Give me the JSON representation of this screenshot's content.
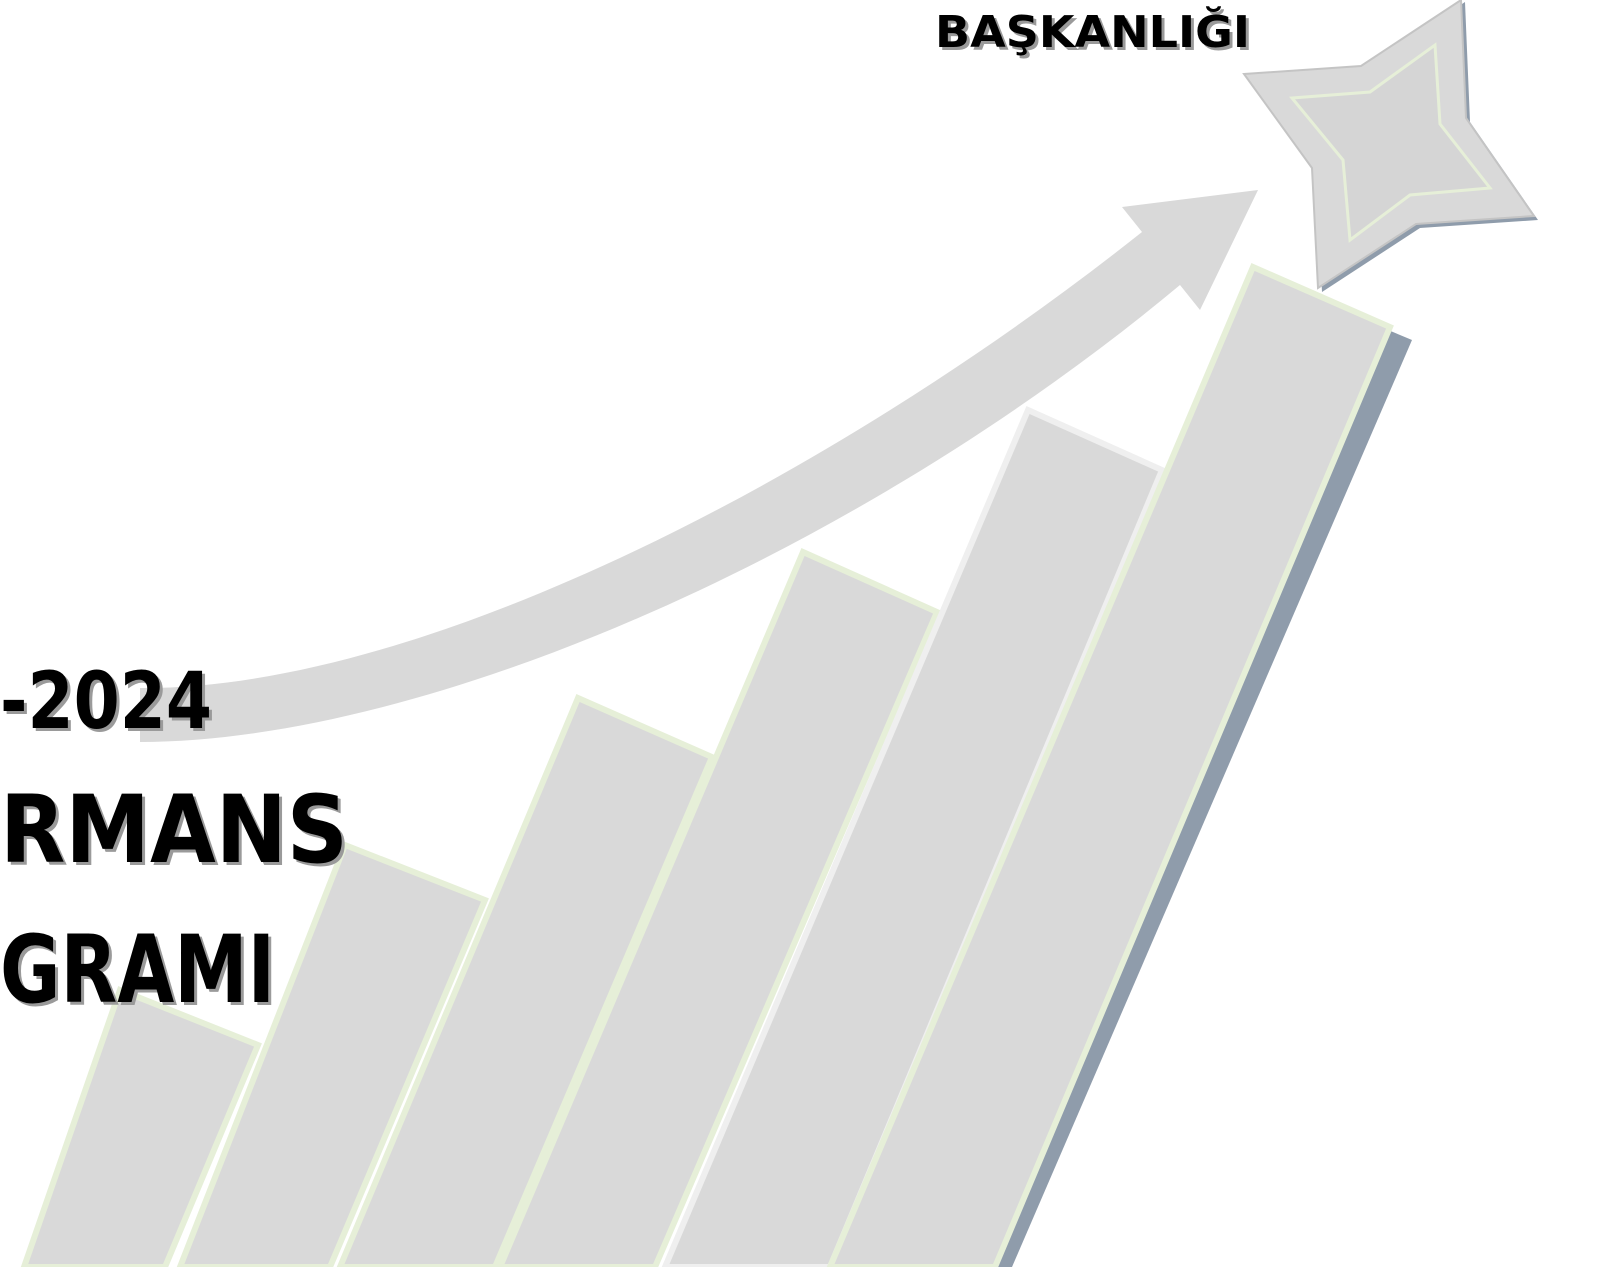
{
  "header": {
    "title": "BAŞKANLIĞI"
  },
  "cover": {
    "lines": [
      "-2024",
      "RMANS",
      "GRAMI"
    ]
  }
}
